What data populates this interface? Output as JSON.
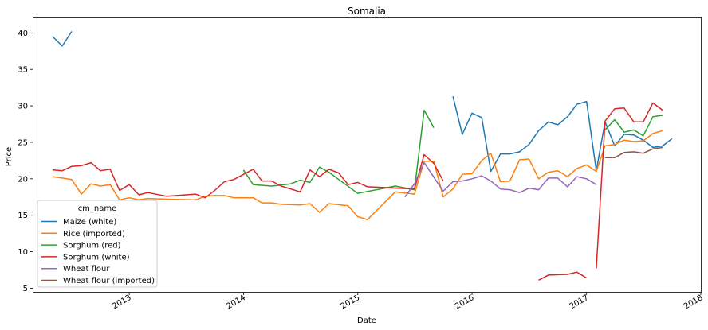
{
  "chart_data": {
    "type": "line",
    "title": "Somalia",
    "xlabel": "Date",
    "ylabel": "Price",
    "xlim": [
      "2012-03-01",
      "2018-01-01"
    ],
    "ylim": [
      4.5,
      42
    ],
    "xticks": [
      {
        "date": "2013-01-01",
        "label": "2013"
      },
      {
        "date": "2014-01-01",
        "label": "2014"
      },
      {
        "date": "2015-01-01",
        "label": "2015"
      },
      {
        "date": "2016-01-01",
        "label": "2016"
      },
      {
        "date": "2017-01-01",
        "label": "2017"
      },
      {
        "date": "2018-01-01",
        "label": "2018"
      }
    ],
    "yticks": [
      5,
      10,
      15,
      20,
      25,
      30,
      35,
      40
    ],
    "grid": false,
    "legend": {
      "title": "cm_name",
      "position": "lower-left"
    },
    "series": [
      {
        "name": "Maize (white)",
        "color": "#1f77b4",
        "segments": [
          [
            [
              "2012-05-01",
              39.5
            ],
            [
              "2012-06-01",
              38.2
            ],
            [
              "2012-07-01",
              40.2
            ]
          ],
          [
            [
              "2015-11-01",
              31.3
            ],
            [
              "2015-12-01",
              26.1
            ],
            [
              "2016-01-01",
              29.0
            ],
            [
              "2016-02-01",
              28.4
            ],
            [
              "2016-03-01",
              21.0
            ],
            [
              "2016-04-01",
              23.4
            ],
            [
              "2016-05-01",
              23.4
            ],
            [
              "2016-06-01",
              23.7
            ],
            [
              "2016-07-01",
              24.7
            ],
            [
              "2016-08-01",
              26.6
            ],
            [
              "2016-09-01",
              27.8
            ],
            [
              "2016-10-01",
              27.4
            ],
            [
              "2016-11-01",
              28.5
            ],
            [
              "2016-12-01",
              30.2
            ],
            [
              "2017-01-01",
              30.6
            ],
            [
              "2017-02-01",
              21.1
            ],
            [
              "2017-03-01",
              27.8
            ],
            [
              "2017-04-01",
              24.5
            ],
            [
              "2017-05-01",
              26.1
            ],
            [
              "2017-06-01",
              26.0
            ],
            [
              "2017-07-01",
              25.3
            ],
            [
              "2017-08-01",
              24.3
            ],
            [
              "2017-09-01",
              24.5
            ],
            [
              "2017-10-01",
              25.5
            ]
          ]
        ]
      },
      {
        "name": "Rice (imported)",
        "color": "#ff7f0e",
        "segments": [
          [
            [
              "2012-05-01",
              20.3
            ],
            [
              "2012-06-01",
              20.1
            ],
            [
              "2012-07-01",
              19.9
            ],
            [
              "2012-08-01",
              17.9
            ],
            [
              "2012-09-01",
              19.3
            ],
            [
              "2012-10-01",
              19.0
            ],
            [
              "2012-11-01",
              19.2
            ],
            [
              "2012-12-01",
              17.1
            ],
            [
              "2013-01-01",
              17.4
            ],
            [
              "2013-02-01",
              17.1
            ],
            [
              "2013-03-01",
              17.3
            ],
            [
              "2013-05-01",
              17.2
            ],
            [
              "2013-08-01",
              17.1
            ],
            [
              "2013-09-01",
              17.6
            ],
            [
              "2013-10-01",
              17.7
            ],
            [
              "2013-11-01",
              17.7
            ],
            [
              "2013-12-01",
              17.4
            ],
            [
              "2014-02-01",
              17.4
            ],
            [
              "2014-03-01",
              16.7
            ],
            [
              "2014-04-01",
              16.7
            ],
            [
              "2014-05-01",
              16.5
            ],
            [
              "2014-07-01",
              16.4
            ],
            [
              "2014-08-01",
              16.6
            ],
            [
              "2014-09-01",
              15.4
            ],
            [
              "2014-10-01",
              16.6
            ],
            [
              "2014-12-01",
              16.3
            ],
            [
              "2015-01-01",
              14.8
            ],
            [
              "2015-02-01",
              14.4
            ],
            [
              "2015-05-01",
              18.2
            ],
            [
              "2015-07-01",
              17.9
            ],
            [
              "2015-08-01",
              22.4
            ],
            [
              "2015-09-01",
              22.4
            ],
            [
              "2015-10-01",
              17.5
            ],
            [
              "2015-11-01",
              18.6
            ],
            [
              "2015-12-01",
              20.6
            ],
            [
              "2016-01-01",
              20.7
            ],
            [
              "2016-02-01",
              22.5
            ],
            [
              "2016-03-01",
              23.5
            ],
            [
              "2016-04-01",
              19.6
            ],
            [
              "2016-05-01",
              19.7
            ],
            [
              "2016-06-01",
              22.6
            ],
            [
              "2016-07-01",
              22.7
            ],
            [
              "2016-08-01",
              20.0
            ],
            [
              "2016-09-01",
              20.9
            ],
            [
              "2016-10-01",
              21.1
            ],
            [
              "2016-11-01",
              20.3
            ],
            [
              "2016-12-01",
              21.4
            ],
            [
              "2017-01-01",
              21.9
            ],
            [
              "2017-02-01",
              21.0
            ],
            [
              "2017-03-01",
              24.5
            ],
            [
              "2017-04-01",
              24.7
            ],
            [
              "2017-05-01",
              25.3
            ],
            [
              "2017-06-01",
              25.1
            ],
            [
              "2017-07-01",
              25.2
            ],
            [
              "2017-08-01",
              26.2
            ],
            [
              "2017-09-01",
              26.6
            ]
          ]
        ]
      },
      {
        "name": "Sorghum (red)",
        "color": "#2ca02c",
        "segments": [
          [
            [
              "2014-01-01",
              21.2
            ],
            [
              "2014-02-01",
              19.2
            ],
            [
              "2014-04-01",
              19.0
            ],
            [
              "2014-06-01",
              19.3
            ],
            [
              "2014-07-01",
              19.8
            ],
            [
              "2014-08-01",
              19.5
            ],
            [
              "2014-09-01",
              21.6
            ],
            [
              "2014-10-01",
              20.9
            ],
            [
              "2014-11-01",
              19.9
            ],
            [
              "2015-01-01",
              18.0
            ],
            [
              "2015-05-01",
              19.0
            ],
            [
              "2015-07-01",
              18.5
            ],
            [
              "2015-08-01",
              29.4
            ],
            [
              "2015-09-01",
              27.0
            ]
          ],
          [
            [
              "2017-03-01",
              26.7
            ],
            [
              "2017-04-01",
              28.1
            ],
            [
              "2017-05-01",
              26.4
            ],
            [
              "2017-06-01",
              26.7
            ],
            [
              "2017-07-01",
              25.9
            ],
            [
              "2017-08-01",
              28.5
            ],
            [
              "2017-09-01",
              28.7
            ]
          ]
        ]
      },
      {
        "name": "Sorghum (white)",
        "color": "#d62728",
        "segments": [
          [
            [
              "2012-05-01",
              21.2
            ],
            [
              "2012-06-01",
              21.1
            ],
            [
              "2012-07-01",
              21.7
            ],
            [
              "2012-08-01",
              21.8
            ],
            [
              "2012-09-01",
              22.2
            ],
            [
              "2012-10-01",
              21.1
            ],
            [
              "2012-11-01",
              21.3
            ],
            [
              "2012-12-01",
              18.4
            ],
            [
              "2013-01-01",
              19.2
            ],
            [
              "2013-02-01",
              17.8
            ],
            [
              "2013-03-01",
              18.1
            ],
            [
              "2013-05-01",
              17.6
            ],
            [
              "2013-08-01",
              17.9
            ],
            [
              "2013-09-01",
              17.4
            ],
            [
              "2013-10-01",
              18.4
            ],
            [
              "2013-11-01",
              19.6
            ],
            [
              "2013-12-01",
              19.9
            ],
            [
              "2014-02-01",
              21.3
            ],
            [
              "2014-03-01",
              19.7
            ],
            [
              "2014-04-01",
              19.7
            ],
            [
              "2014-05-01",
              19.0
            ],
            [
              "2014-07-01",
              18.2
            ],
            [
              "2014-08-01",
              21.2
            ],
            [
              "2014-09-01",
              20.3
            ],
            [
              "2014-10-01",
              21.3
            ],
            [
              "2014-11-01",
              20.8
            ],
            [
              "2014-12-01",
              19.2
            ],
            [
              "2015-01-01",
              19.5
            ],
            [
              "2015-02-01",
              18.9
            ],
            [
              "2015-07-01",
              18.6
            ],
            [
              "2015-08-01",
              23.3
            ],
            [
              "2015-09-01",
              22.1
            ],
            [
              "2015-10-01",
              19.7
            ]
          ],
          [
            [
              "2016-08-01",
              6.1
            ],
            [
              "2016-09-01",
              6.8
            ],
            [
              "2016-11-01",
              6.9
            ],
            [
              "2016-12-01",
              7.2
            ],
            [
              "2017-01-01",
              6.4
            ]
          ],
          [
            [
              "2017-02-01",
              7.7
            ],
            [
              "2017-03-01",
              27.9
            ],
            [
              "2017-04-01",
              29.6
            ],
            [
              "2017-05-01",
              29.7
            ],
            [
              "2017-06-01",
              27.8
            ],
            [
              "2017-07-01",
              27.8
            ],
            [
              "2017-08-01",
              30.4
            ],
            [
              "2017-09-01",
              29.4
            ]
          ]
        ]
      },
      {
        "name": "Wheat flour",
        "color": "#9467bd",
        "segments": [
          [
            [
              "2015-06-01",
              17.5
            ],
            [
              "2015-07-01",
              19.3
            ],
            [
              "2015-08-01",
              22.2
            ],
            [
              "2015-10-01",
              18.3
            ],
            [
              "2015-11-01",
              19.6
            ],
            [
              "2015-12-01",
              19.7
            ],
            [
              "2016-01-01",
              20.0
            ],
            [
              "2016-02-01",
              20.4
            ],
            [
              "2016-03-01",
              19.7
            ],
            [
              "2016-04-01",
              18.6
            ],
            [
              "2016-05-01",
              18.5
            ],
            [
              "2016-06-01",
              18.1
            ],
            [
              "2016-07-01",
              18.7
            ],
            [
              "2016-08-01",
              18.5
            ],
            [
              "2016-09-01",
              20.1
            ],
            [
              "2016-10-01",
              20.1
            ],
            [
              "2016-11-01",
              18.9
            ],
            [
              "2016-12-01",
              20.3
            ],
            [
              "2017-01-01",
              20.0
            ],
            [
              "2017-02-01",
              19.2
            ]
          ]
        ]
      },
      {
        "name": "Wheat flour (imported)",
        "color": "#8c564b",
        "segments": [
          [
            [
              "2017-03-01",
              22.9
            ],
            [
              "2017-04-01",
              22.9
            ],
            [
              "2017-05-01",
              23.6
            ],
            [
              "2017-06-01",
              23.7
            ],
            [
              "2017-07-01",
              23.5
            ],
            [
              "2017-08-01",
              24.1
            ],
            [
              "2017-09-01",
              24.3
            ]
          ]
        ]
      }
    ]
  }
}
